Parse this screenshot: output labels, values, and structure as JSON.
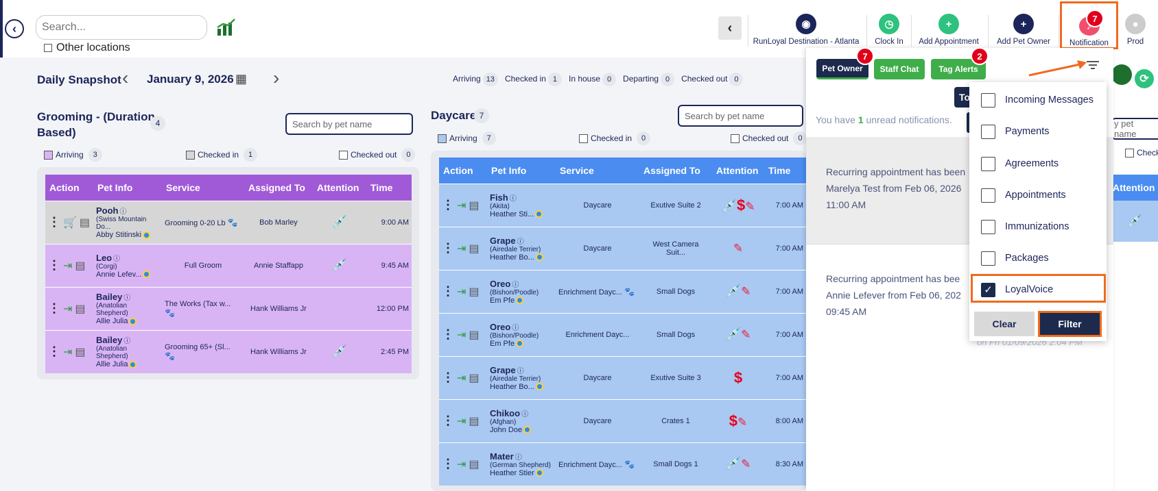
{
  "header": {
    "search_placeholder": "Search...",
    "other_locations": "Other locations",
    "location": "RunLoyal Destination - Atlanta",
    "clock_in": "Clock In",
    "add_appointment": "Add Appointment",
    "add_pet_owner": "Add Pet Owner",
    "notification": "Notification",
    "notification_count": "7",
    "prod": "Prod"
  },
  "snapshot": {
    "title": "Daily Snapshot",
    "date": "January 9, 2026",
    "stats": [
      {
        "label": "Arriving",
        "count": "13"
      },
      {
        "label": "Checked in",
        "count": "1"
      },
      {
        "label": "In house",
        "count": "0"
      },
      {
        "label": "Departing",
        "count": "0"
      },
      {
        "label": "Checked out",
        "count": "0"
      }
    ]
  },
  "grooming": {
    "title_line1": "Grooming - (Duration",
    "title_line2": "Based)",
    "count": "4",
    "search_placeholder": "Search by pet name",
    "arriving": "Arriving",
    "arriving_count": "3",
    "checked_in": "Checked in",
    "checked_in_count": "1",
    "checked_out": "Checked out",
    "checked_out_count": "0",
    "columns": [
      "Action",
      "Pet Info",
      "Service",
      "Assigned To",
      "Attention",
      "Time"
    ],
    "rows": [
      {
        "pet": "Pooh",
        "breed": "(Swiss Mountain Do...",
        "owner": "Abby Stitinski",
        "service": "Grooming 0-20 Lb",
        "assigned": "Bob Marley",
        "time": "9:00 AM"
      },
      {
        "pet": "Leo",
        "breed": "(Corgi)",
        "owner": "Annie Lefev...",
        "service": "Full Groom",
        "assigned": "Annie Staffapp",
        "time": "9:45 AM"
      },
      {
        "pet": "Bailey",
        "breed": "(Anatolian Shepherd)",
        "owner": "Allie Julia",
        "service": "The Works (Tax w...",
        "assigned": "Hank Williams Jr",
        "time": "12:00 PM"
      },
      {
        "pet": "Bailey",
        "breed": "(Anatolian Shepherd)",
        "owner": "Allie Julia",
        "service": "Grooming 65+ (Sl...",
        "assigned": "Hank Williams Jr",
        "time": "2:45 PM"
      }
    ]
  },
  "daycare": {
    "title": "Daycare",
    "count": "7",
    "search_placeholder": "Search by pet name",
    "arriving": "Arriving",
    "arriving_count": "7",
    "checked_in": "Checked in",
    "checked_in_count": "0",
    "checked_out": "Checked out",
    "checked_out_count": "0",
    "columns": [
      "Action",
      "Pet Info",
      "Service",
      "Assigned To",
      "Attention",
      "Time"
    ],
    "rows": [
      {
        "pet": "Fish",
        "breed": "(Akita)",
        "owner": "Heather Sti...",
        "service": "Daycare",
        "assigned": "Exutive Suite 2",
        "time": "7:00 AM"
      },
      {
        "pet": "Grape",
        "breed": "(Airedale Terrier)",
        "owner": "Heather Bo...",
        "service": "Daycare",
        "assigned": "West Camera Suit...",
        "time": "7:00 AM"
      },
      {
        "pet": "Oreo",
        "breed": "(Bishon/Poodle)",
        "owner": "Em Pfe",
        "service": "Enrichment Dayc...",
        "assigned": "Small Dogs",
        "time": "7:00 AM"
      },
      {
        "pet": "Oreo",
        "breed": "(Bishon/Poodle)",
        "owner": "Em Pfe",
        "service": "Enrichment Dayc...",
        "assigned": "Small Dogs",
        "time": "7:00 AM"
      },
      {
        "pet": "Grape",
        "breed": "(Airedale Terrier)",
        "owner": "Heather Bo...",
        "service": "Daycare",
        "assigned": "Exutive Suite 3",
        "time": "7:00 AM"
      },
      {
        "pet": "Chikoo",
        "breed": "(Afghan)",
        "owner": "John Doe",
        "service": "Daycare",
        "assigned": "Crates 1",
        "time": "8:00 AM"
      },
      {
        "pet": "Mater",
        "breed": "(German Shepherd)",
        "owner": "Heather Stier",
        "service": "Enrichment Dayc...",
        "assigned": "Small Dogs 1",
        "time": "8:30 AM"
      }
    ]
  },
  "notifications": {
    "tab_pet_owner": "Pet Owner",
    "tab_pet_owner_count": "7",
    "tab_staff_chat": "Staff Chat",
    "tab_tag_alerts": "Tag Alerts",
    "tab_tag_alerts_count": "2",
    "unread_prefix": "You have",
    "unread_count": "1",
    "unread_suffix": "unread notifications.",
    "to_label": "To",
    "msg1_l1": "Recurring appointment has been",
    "msg1_l2": "Marelya Test from Feb 06, 2026",
    "msg1_l3": "11:00 AM",
    "msg2_l1": "Recurring appointment has bee",
    "msg2_l2": "Annie Lefever from Feb 06, 202",
    "msg2_l3": "09:45 AM",
    "timestamp": "on Fri 01/09/2026 2:04 PM",
    "right_search": "y pet name",
    "right_check": "Check",
    "right_attention": "Attention"
  },
  "filter": {
    "options": [
      "Incoming Messages",
      "Payments",
      "Agreements",
      "Appointments",
      "Immunizations",
      "Packages",
      "LoyalVoice"
    ],
    "selected": "LoyalVoice",
    "clear": "Clear",
    "apply": "Filter"
  },
  "colors": {
    "navy": "#1b2559",
    "grooming_header": "#a05ad8",
    "grooming_row": "#d9b4f5",
    "grooming_row_checked": "#d6d6d6",
    "daycare_header": "#4a8cf0",
    "daycare_row": "#a9c8f2",
    "pet_owner_tab": "#1b2a4d",
    "green_tab": "#3fae4a",
    "accent_orange": "#f06a1e"
  }
}
